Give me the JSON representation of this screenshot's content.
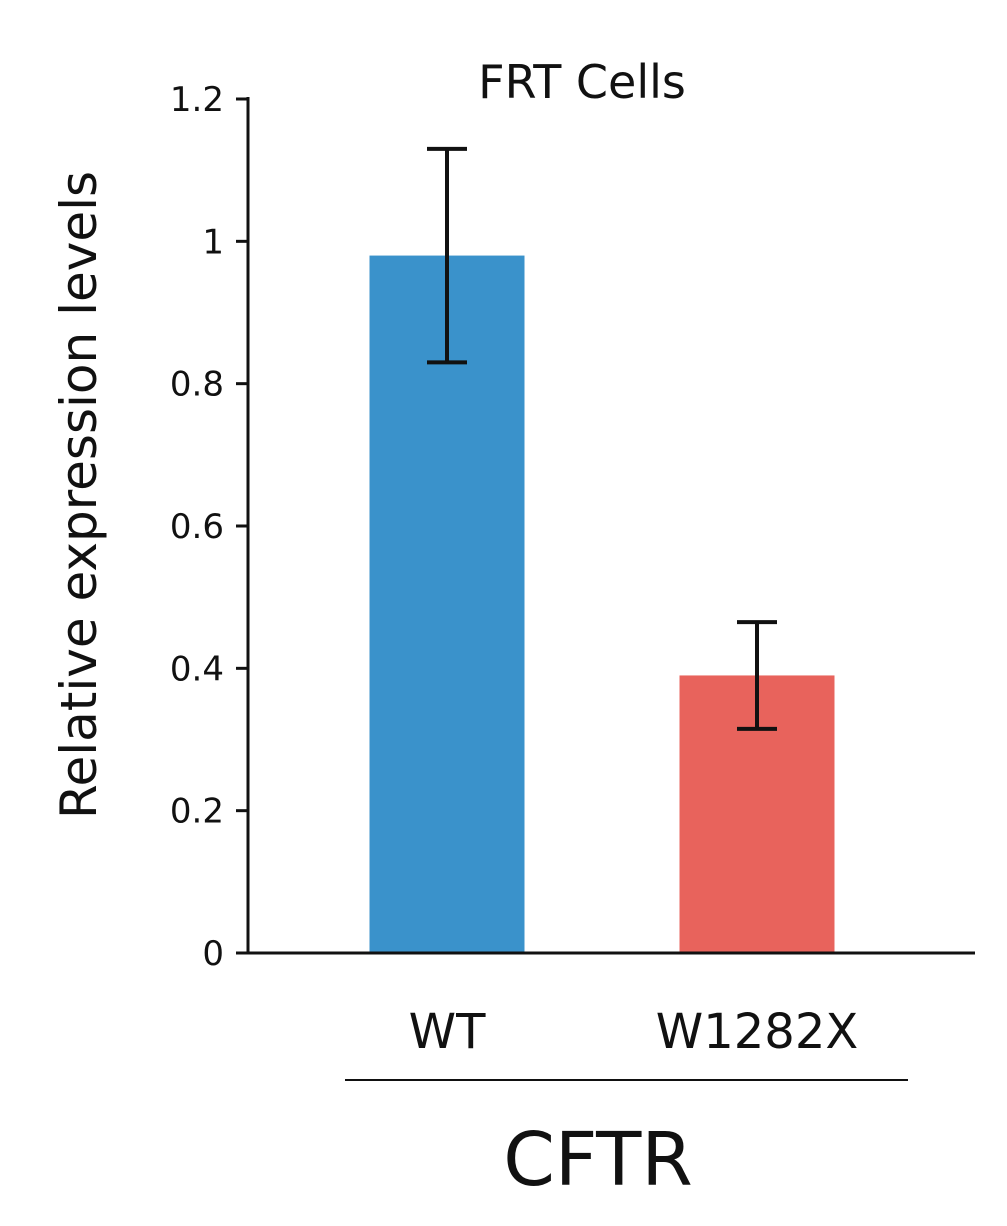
{
  "chart_data": {
    "type": "bar",
    "title": "FRT Cells",
    "ylabel": "Relative  expression  levels",
    "xlabel": "",
    "group_label": "CFTR",
    "categories": [
      "WT",
      "W1282X"
    ],
    "values": [
      0.98,
      0.39
    ],
    "error": [
      0.15,
      0.075
    ],
    "colors": [
      "#3a92cb",
      "#e8635c"
    ],
    "ylim": [
      0,
      1.2
    ],
    "yticks": [
      0,
      0.2,
      0.4,
      0.6,
      0.8,
      1,
      1.2
    ],
    "ytick_labels": [
      "0",
      "0.2",
      "0.4",
      "0.6",
      "0.8",
      "1",
      "1.2"
    ],
    "grid": false,
    "legend": "none"
  }
}
